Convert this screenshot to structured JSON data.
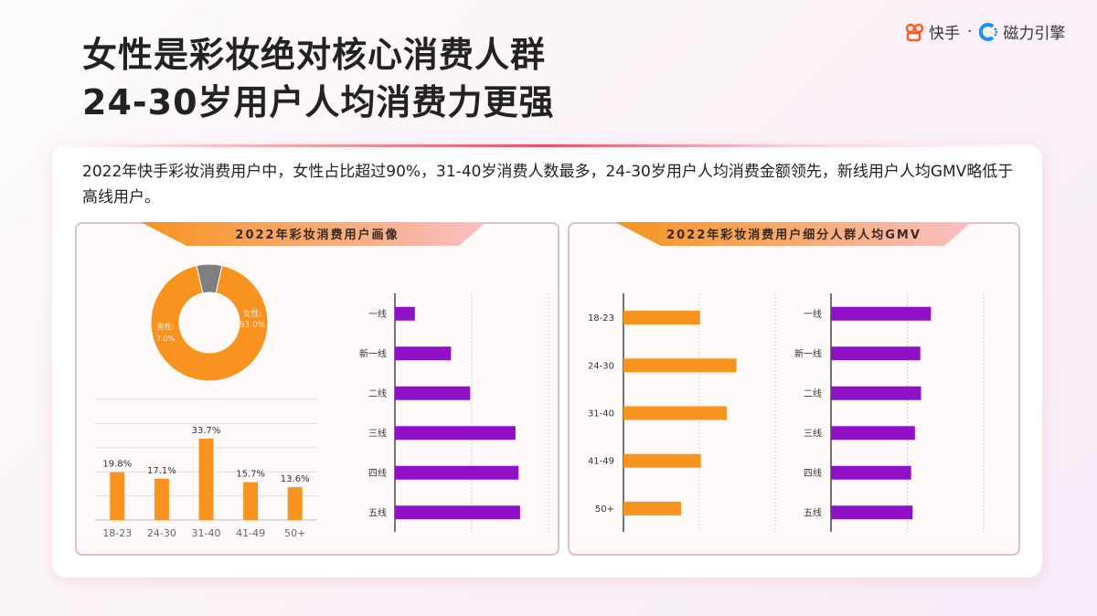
{
  "header": {
    "title_line1": "女性是彩妆绝对核心消费人群",
    "title_line2": "24-30岁用户人均消费力更强"
  },
  "logo": {
    "brand1": "快手",
    "separator": "·",
    "brand2": "磁力引擎"
  },
  "description": "2022年快手彩妆消费用户中，女性占比超过90%，31-40岁消费人数最多，24-30岁用户人均消费金额领先，新线用户人均GMV略低于高线用户。",
  "colors": {
    "orange": "#F7931E",
    "purple": "#9010C8",
    "gray": "#7F7F7F"
  },
  "panels": {
    "left_title": "2022年彩妆消费用户画像",
    "right_title": "2022年彩妆消费用户细分人群人均GMV"
  },
  "chart_data": [
    {
      "type": "pie",
      "variant": "donut",
      "slices": [
        {
          "label": "女性",
          "value": 93.0,
          "display": "93.0%"
        },
        {
          "label": "男性",
          "value": 7.0,
          "display": "7.0%"
        }
      ]
    },
    {
      "type": "bar",
      "orientation": "vertical",
      "categories": [
        "18-23",
        "24-30",
        "31-40",
        "41-49",
        "50+"
      ],
      "values": [
        19.8,
        17.1,
        33.7,
        15.7,
        13.6
      ],
      "labels": [
        "19.8%",
        "17.1%",
        "33.7%",
        "15.7%",
        "13.6%"
      ],
      "ylim": [
        0,
        50
      ],
      "grid": true
    },
    {
      "type": "bar",
      "orientation": "horizontal",
      "categories": [
        "一线",
        "新一线",
        "二线",
        "三线",
        "四线",
        "五线"
      ],
      "values": [
        0.26,
        0.73,
        0.98,
        1.57,
        1.61,
        1.63
      ],
      "xlim": [
        0,
        2
      ],
      "grid": true,
      "note_scale": "relative, unlabeled axis"
    },
    {
      "type": "bar",
      "orientation": "horizontal",
      "categories": [
        "18-23",
        "24-30",
        "31-40",
        "41-49",
        "50+"
      ],
      "values": [
        1.01,
        1.49,
        1.36,
        1.02,
        0.76
      ],
      "xlim": [
        0,
        2
      ],
      "grid": true
    },
    {
      "type": "bar",
      "orientation": "horizontal",
      "categories": [
        "一线",
        "新一线",
        "二线",
        "三线",
        "四线",
        "五线"
      ],
      "values": [
        1.31,
        1.17,
        1.18,
        1.1,
        1.05,
        1.07
      ],
      "xlim": [
        0,
        2
      ],
      "grid": true
    }
  ]
}
